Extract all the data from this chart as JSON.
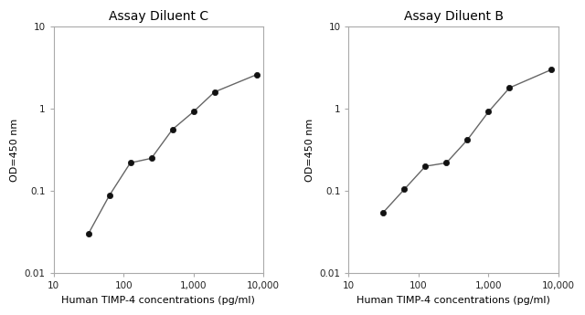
{
  "chart1": {
    "title": "Assay Diluent C",
    "x": [
      31.25,
      62.5,
      125,
      250,
      500,
      1000,
      2000,
      8000
    ],
    "y": [
      0.03,
      0.088,
      0.22,
      0.25,
      0.56,
      0.92,
      1.6,
      2.6
    ],
    "xlabel": "Human TIMP-4 concentrations (pg/ml)",
    "ylabel": "OD=450 nm",
    "xlim": [
      10,
      10000
    ],
    "ylim": [
      0.01,
      10
    ]
  },
  "chart2": {
    "title": "Assay Diluent B",
    "x": [
      31.25,
      62.5,
      125,
      250,
      500,
      1000,
      2000,
      8000
    ],
    "y": [
      0.055,
      0.105,
      0.2,
      0.22,
      0.42,
      0.92,
      1.8,
      3.0
    ],
    "xlabel": "Human TIMP-4 concentrations (pg/ml)",
    "ylabel": "OD=450 nm",
    "xlim": [
      10,
      10000
    ],
    "ylim": [
      0.01,
      10
    ]
  },
  "line_color": "#666666",
  "marker_color": "#111111",
  "bg_color": "#ffffff",
  "title_fontsize": 10,
  "label_fontsize": 8,
  "tick_fontsize": 7.5,
  "xticks": [
    10,
    100,
    1000,
    10000
  ],
  "xtick_labels": [
    "10",
    "100",
    "1,000",
    "10,000"
  ],
  "yticks": [
    0.01,
    0.1,
    1,
    10
  ],
  "ytick_labels": [
    "0.01",
    "0.1",
    "1",
    "10"
  ]
}
